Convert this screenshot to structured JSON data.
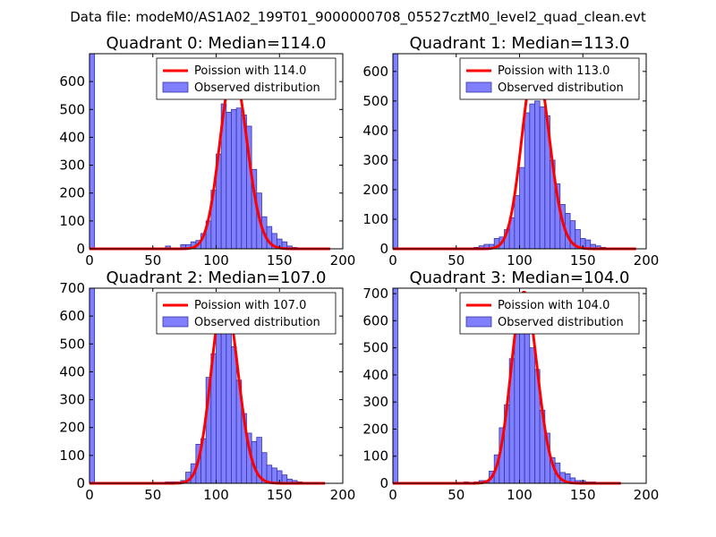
{
  "figure_title": "Data file: modeM0/AS1A02_199T01_9000000708_05527cztM0_level2_quad_clean.evt",
  "colors": {
    "histogram_fill": "#7f7fff",
    "histogram_edge": "#3535a5",
    "poisson_curve": "#ff0000",
    "axes": "#000000",
    "background": "#ffffff"
  },
  "chart_data": [
    {
      "type": "bar",
      "title": "Quadrant 0: Median=114.0",
      "median": 114.0,
      "xlim": [
        0,
        200
      ],
      "ylim": [
        0,
        700
      ],
      "xticks": [
        0,
        50,
        100,
        150,
        200
      ],
      "yticks": [
        0,
        100,
        200,
        300,
        400,
        500,
        600
      ],
      "bin_width": 4,
      "bins": [
        {
          "x": 0,
          "count": 700
        },
        {
          "x": 60,
          "count": 10
        },
        {
          "x": 72,
          "count": 15
        },
        {
          "x": 76,
          "count": 15
        },
        {
          "x": 80,
          "count": 25
        },
        {
          "x": 84,
          "count": 30
        },
        {
          "x": 88,
          "count": 55
        },
        {
          "x": 92,
          "count": 100
        },
        {
          "x": 96,
          "count": 210
        },
        {
          "x": 100,
          "count": 340
        },
        {
          "x": 104,
          "count": 520
        },
        {
          "x": 108,
          "count": 490
        },
        {
          "x": 112,
          "count": 500
        },
        {
          "x": 116,
          "count": 505
        },
        {
          "x": 120,
          "count": 480
        },
        {
          "x": 124,
          "count": 440
        },
        {
          "x": 128,
          "count": 285
        },
        {
          "x": 132,
          "count": 200
        },
        {
          "x": 136,
          "count": 115
        },
        {
          "x": 140,
          "count": 80
        },
        {
          "x": 144,
          "count": 55
        },
        {
          "x": 148,
          "count": 35
        },
        {
          "x": 152,
          "count": 25
        },
        {
          "x": 156,
          "count": 10
        },
        {
          "x": 160,
          "count": 5
        }
      ],
      "poisson_peak": 635,
      "poisson_range": [
        0,
        190
      ],
      "legend": [
        "Poission with 114.0",
        "Observed distribution"
      ]
    },
    {
      "type": "bar",
      "title": "Quadrant 1: Median=113.0",
      "median": 113.0,
      "xlim": [
        0,
        200
      ],
      "ylim": [
        0,
        660
      ],
      "xticks": [
        0,
        50,
        100,
        150,
        200
      ],
      "yticks": [
        0,
        100,
        200,
        300,
        400,
        500,
        600
      ],
      "bin_width": 4,
      "bins": [
        {
          "x": 0,
          "count": 660
        },
        {
          "x": 64,
          "count": 5
        },
        {
          "x": 68,
          "count": 10
        },
        {
          "x": 72,
          "count": 15
        },
        {
          "x": 76,
          "count": 15
        },
        {
          "x": 80,
          "count": 35
        },
        {
          "x": 84,
          "count": 40
        },
        {
          "x": 88,
          "count": 65
        },
        {
          "x": 92,
          "count": 105
        },
        {
          "x": 96,
          "count": 180
        },
        {
          "x": 100,
          "count": 275
        },
        {
          "x": 104,
          "count": 460
        },
        {
          "x": 108,
          "count": 490
        },
        {
          "x": 112,
          "count": 500
        },
        {
          "x": 116,
          "count": 480
        },
        {
          "x": 120,
          "count": 450
        },
        {
          "x": 124,
          "count": 300
        },
        {
          "x": 128,
          "count": 220
        },
        {
          "x": 132,
          "count": 150
        },
        {
          "x": 136,
          "count": 120
        },
        {
          "x": 140,
          "count": 95
        },
        {
          "x": 144,
          "count": 65
        },
        {
          "x": 148,
          "count": 35
        },
        {
          "x": 152,
          "count": 30
        },
        {
          "x": 156,
          "count": 15
        },
        {
          "x": 160,
          "count": 10
        },
        {
          "x": 164,
          "count": 5
        }
      ],
      "poisson_peak": 635,
      "poisson_range": [
        0,
        192
      ],
      "legend": [
        "Poission with 113.0",
        "Observed distribution"
      ]
    },
    {
      "type": "bar",
      "title": "Quadrant 2: Median=107.0",
      "median": 107.0,
      "xlim": [
        0,
        200
      ],
      "ylim": [
        0,
        700
      ],
      "xticks": [
        0,
        50,
        100,
        150,
        200
      ],
      "yticks": [
        0,
        100,
        200,
        300,
        400,
        500,
        600,
        700
      ],
      "bin_width": 4,
      "bins": [
        {
          "x": 0,
          "count": 700
        },
        {
          "x": 60,
          "count": 5
        },
        {
          "x": 64,
          "count": 5
        },
        {
          "x": 68,
          "count": 5
        },
        {
          "x": 72,
          "count": 10
        },
        {
          "x": 76,
          "count": 40
        },
        {
          "x": 80,
          "count": 70
        },
        {
          "x": 84,
          "count": 140
        },
        {
          "x": 88,
          "count": 160
        },
        {
          "x": 92,
          "count": 380
        },
        {
          "x": 96,
          "count": 465
        },
        {
          "x": 100,
          "count": 575
        },
        {
          "x": 104,
          "count": 615
        },
        {
          "x": 108,
          "count": 590
        },
        {
          "x": 112,
          "count": 490
        },
        {
          "x": 116,
          "count": 370
        },
        {
          "x": 120,
          "count": 250
        },
        {
          "x": 124,
          "count": 180
        },
        {
          "x": 128,
          "count": 150
        },
        {
          "x": 132,
          "count": 165
        },
        {
          "x": 136,
          "count": 110
        },
        {
          "x": 140,
          "count": 65
        },
        {
          "x": 144,
          "count": 55
        },
        {
          "x": 148,
          "count": 45
        },
        {
          "x": 152,
          "count": 30
        },
        {
          "x": 156,
          "count": 15
        },
        {
          "x": 160,
          "count": 10
        },
        {
          "x": 164,
          "count": 5
        }
      ],
      "poisson_peak": 680,
      "poisson_range": [
        0,
        186
      ],
      "legend": [
        "Poission with 107.0",
        "Observed distribution"
      ]
    },
    {
      "type": "bar",
      "title": "Quadrant 3: Median=104.0",
      "median": 104.0,
      "xlim": [
        0,
        200
      ],
      "ylim": [
        0,
        720
      ],
      "xticks": [
        0,
        50,
        100,
        150,
        200
      ],
      "yticks": [
        0,
        100,
        200,
        300,
        400,
        500,
        600,
        700
      ],
      "bin_width": 4,
      "bins": [
        {
          "x": 0,
          "count": 720
        },
        {
          "x": 56,
          "count": 5
        },
        {
          "x": 64,
          "count": 5
        },
        {
          "x": 68,
          "count": 10
        },
        {
          "x": 72,
          "count": 10
        },
        {
          "x": 76,
          "count": 45
        },
        {
          "x": 80,
          "count": 105
        },
        {
          "x": 84,
          "count": 205
        },
        {
          "x": 88,
          "count": 290
        },
        {
          "x": 92,
          "count": 460
        },
        {
          "x": 96,
          "count": 560
        },
        {
          "x": 100,
          "count": 640
        },
        {
          "x": 104,
          "count": 620
        },
        {
          "x": 108,
          "count": 500
        },
        {
          "x": 112,
          "count": 420
        },
        {
          "x": 116,
          "count": 270
        },
        {
          "x": 120,
          "count": 185
        },
        {
          "x": 124,
          "count": 95
        },
        {
          "x": 128,
          "count": 75
        },
        {
          "x": 132,
          "count": 40
        },
        {
          "x": 136,
          "count": 35
        },
        {
          "x": 140,
          "count": 20
        },
        {
          "x": 144,
          "count": 10
        },
        {
          "x": 148,
          "count": 10
        },
        {
          "x": 152,
          "count": 5
        },
        {
          "x": 156,
          "count": 5
        }
      ],
      "poisson_peak": 705,
      "poisson_range": [
        0,
        180
      ],
      "legend": [
        "Poission with 104.0",
        "Observed distribution"
      ]
    }
  ]
}
